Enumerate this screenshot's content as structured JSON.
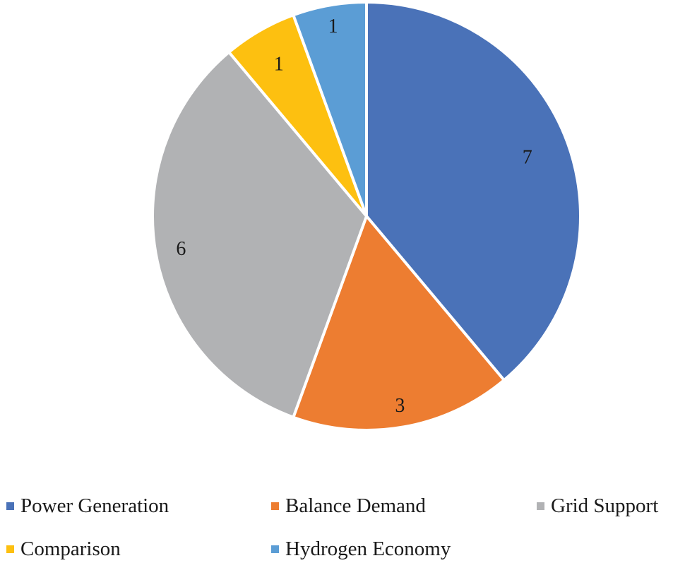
{
  "chart_data": {
    "type": "pie",
    "title": "",
    "categories": [
      "Power Generation",
      "Balance Demand",
      "Grid Support",
      "Comparison",
      "Hydrogen Economy"
    ],
    "values": [
      7,
      3,
      6,
      1,
      1
    ],
    "data_labels": [
      "7",
      "3",
      "6",
      "1",
      "1"
    ],
    "colors": [
      "#4A72B8",
      "#ED7D31",
      "#B1B2B4",
      "#FDC010",
      "#5B9DD5"
    ],
    "start_angle_deg": 0,
    "direction": "clockwise",
    "legend_position": "bottom"
  }
}
